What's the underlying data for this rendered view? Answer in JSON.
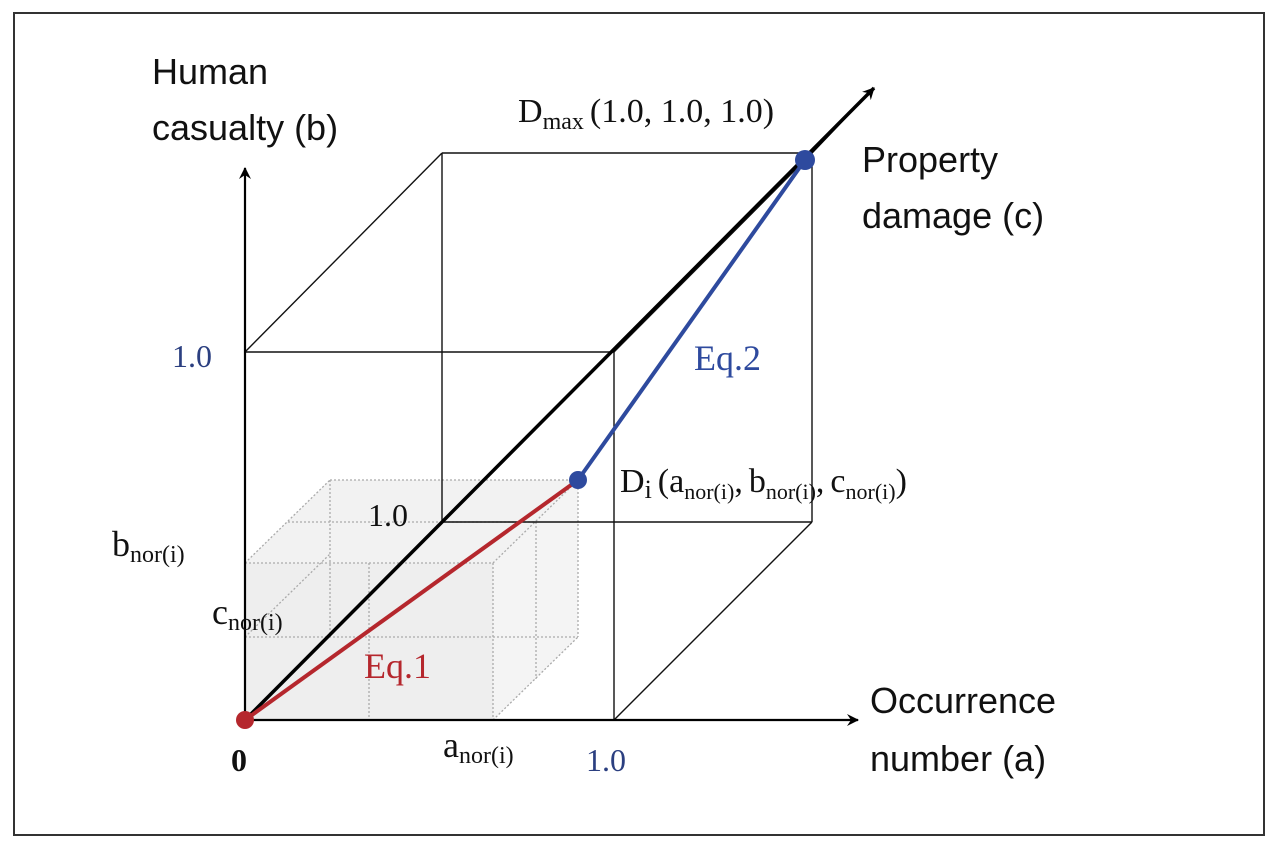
{
  "axes": {
    "b_axis_line1": "Human",
    "b_axis_line2": "casualty (b)",
    "c_axis_line1": "Property",
    "c_axis_line2": "damage (c)",
    "a_axis_line1": "Occurrence",
    "a_axis_line2": "number (a)"
  },
  "ticks": {
    "b_one": "1.0",
    "a_one": "1.0",
    "c_one": "1.0",
    "origin": "0"
  },
  "normalized_labels": {
    "b": "b",
    "c": "c",
    "a": "a",
    "subscript": "nor(i)"
  },
  "points": {
    "dmax_letter": "D",
    "dmax_sub": "max",
    "dmax_coords": "(1.0, 1.0, 1.0)",
    "di_letter": "D",
    "di_sub": "i",
    "di_open": "(",
    "di_a": "a",
    "di_sep1": ",",
    "di_b": "b",
    "di_sep2": ",",
    "di_c": "c",
    "di_close": ")"
  },
  "equations": {
    "eq1": "Eq.1",
    "eq2": "Eq.2"
  },
  "colors": {
    "eq1": "#b5272d",
    "eq2": "#2e4a9e",
    "tick_blue": "#2b3f80"
  }
}
